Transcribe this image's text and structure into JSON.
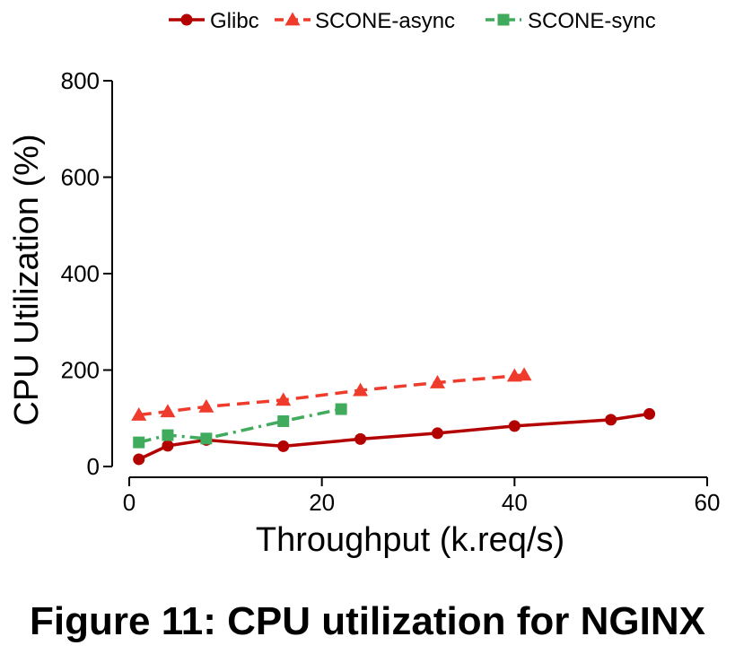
{
  "chart_data": {
    "type": "line",
    "xlabel": "Throughput (k.req/s)",
    "ylabel": "CPU Utilization (%)",
    "xlim": [
      0,
      60
    ],
    "ylim": [
      0,
      800
    ],
    "x_ticks": [
      0,
      20,
      40,
      60
    ],
    "y_ticks": [
      0,
      200,
      400,
      600,
      800
    ],
    "x_tick_labels": [
      "0",
      "20",
      "40",
      "60"
    ],
    "y_tick_labels": [
      "0",
      "200",
      "400",
      "600",
      "800"
    ],
    "grid": false,
    "legend_position": "top",
    "series": [
      {
        "name": "Glibc",
        "color": "#b30000",
        "marker": "circle",
        "line_style": "solid",
        "x": [
          1,
          4,
          8,
          16,
          24,
          32,
          40,
          50,
          54
        ],
        "y": [
          15,
          43,
          55,
          42,
          57,
          69,
          84,
          97,
          109
        ]
      },
      {
        "name": "SCONE-async",
        "color": "#ef3b2c",
        "marker": "triangle",
        "line_style": "dashed",
        "x": [
          1,
          4,
          8,
          16,
          24,
          32,
          40,
          41
        ],
        "y": [
          107,
          114,
          124,
          138,
          158,
          174,
          188,
          190
        ]
      },
      {
        "name": "SCONE-sync",
        "color": "#41ab5d",
        "marker": "square",
        "line_style": "dashdot",
        "x": [
          1,
          4,
          8,
          16,
          22
        ],
        "y": [
          50,
          65,
          58,
          94,
          119
        ]
      }
    ]
  },
  "caption": "Figure 11: CPU utilization for NGINX"
}
